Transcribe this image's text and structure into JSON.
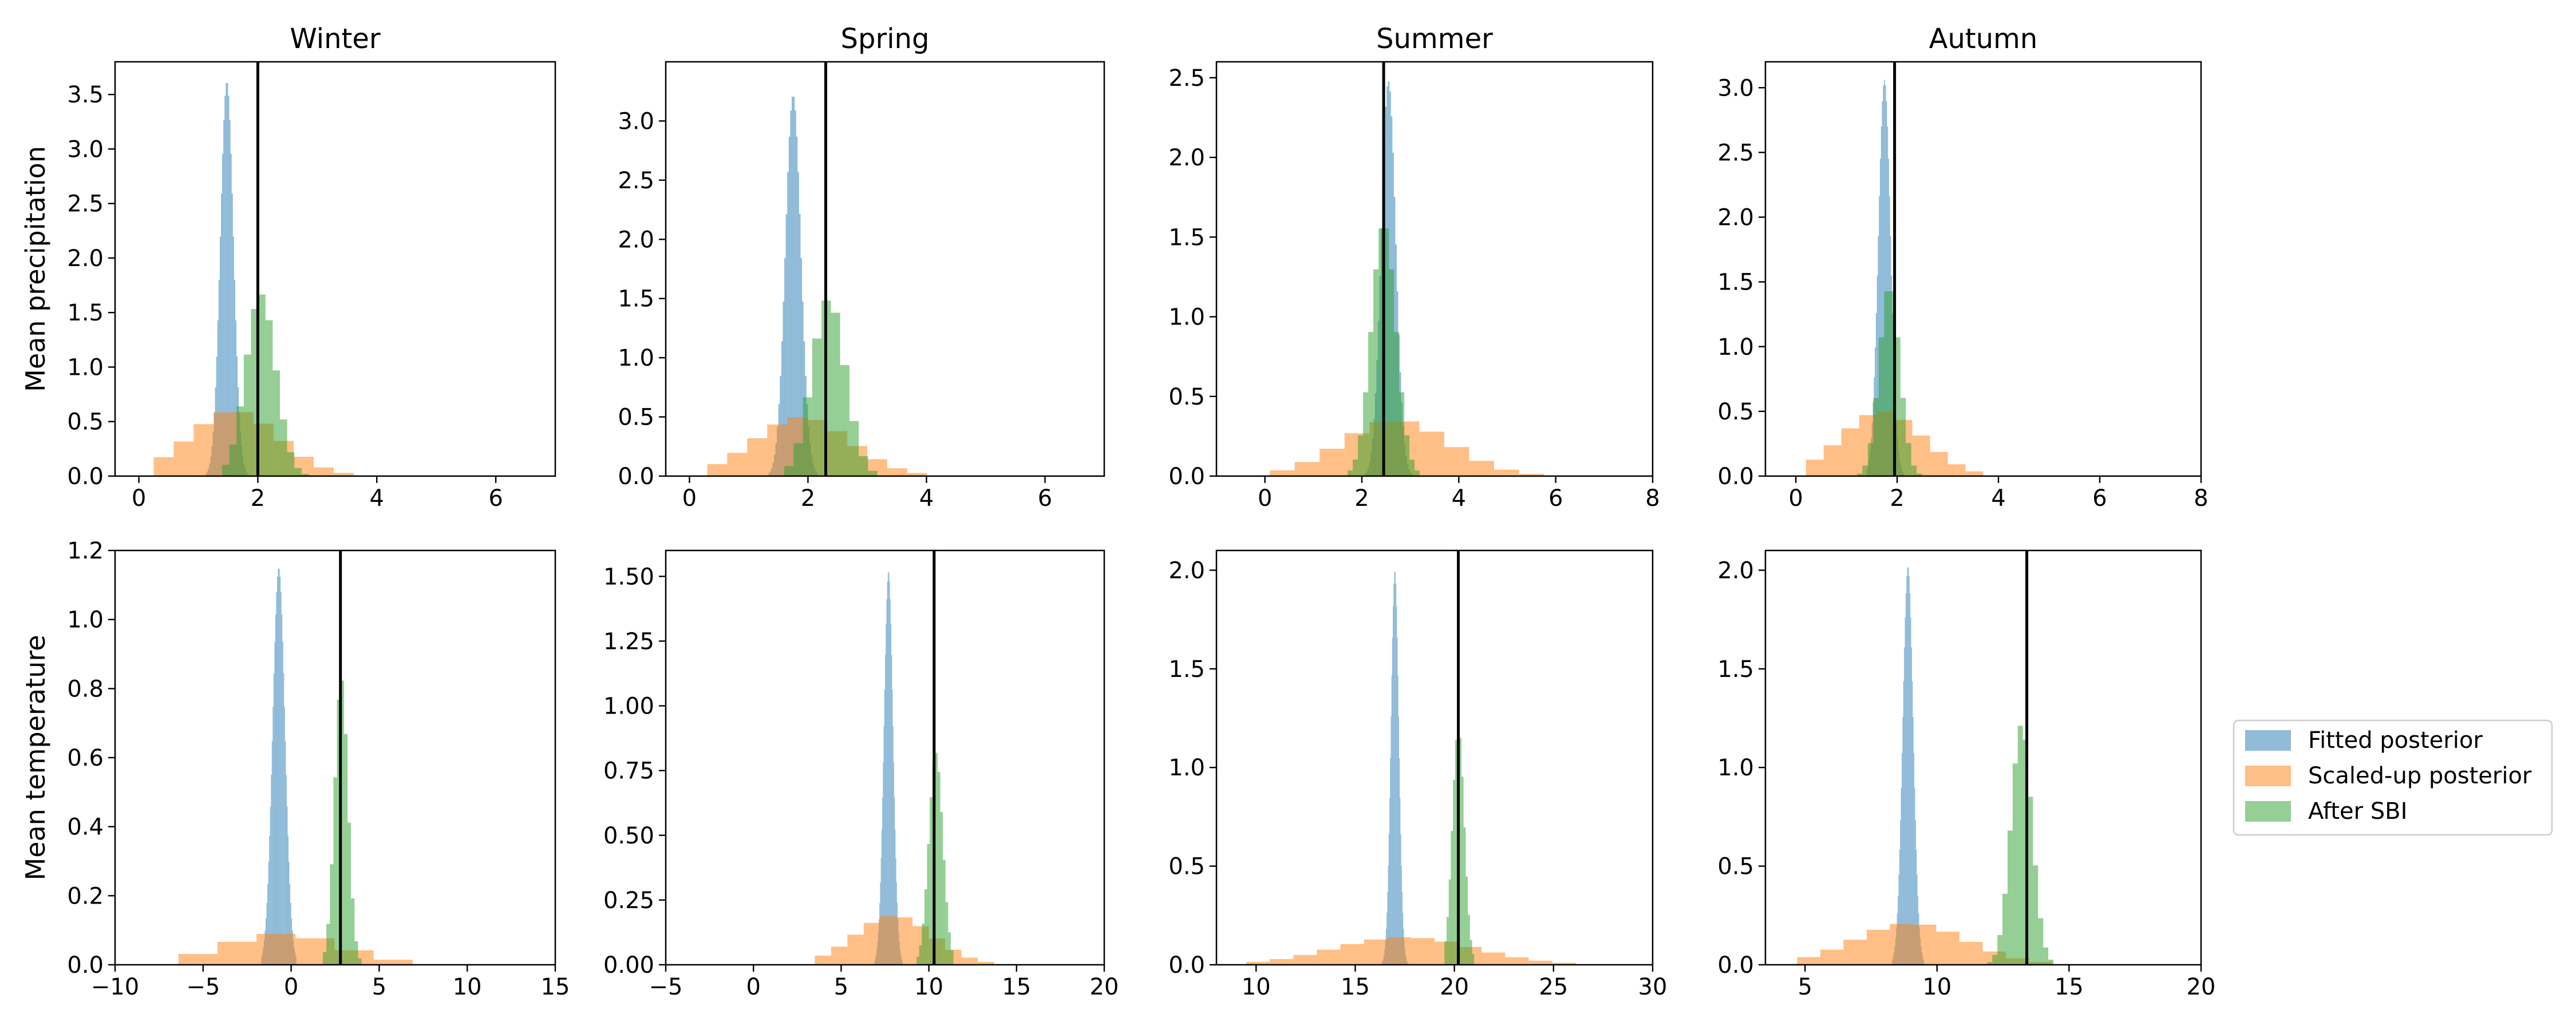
{
  "legend": {
    "placement": "right",
    "items": [
      {
        "label": "Fitted posterior",
        "color": "#1f77b4"
      },
      {
        "label": "Scaled-up posterior",
        "color": "#ff7f0e"
      },
      {
        "label": "After SBI",
        "color": "#2ca02c"
      }
    ]
  },
  "chart_data": [
    {
      "type": "histogram",
      "row": 0,
      "col": 0,
      "title": "Winter",
      "ylabel": "Mean precipitation",
      "xlim": [
        -0.4,
        7.0
      ],
      "ylim": [
        0,
        3.8
      ],
      "xticks": [
        0,
        2,
        4,
        6
      ],
      "yticks": [
        0.0,
        0.5,
        1.0,
        1.5,
        2.0,
        2.5,
        3.0,
        3.5
      ],
      "ytick_labels": [
        "0.0",
        "0.5",
        "1.0",
        "1.5",
        "2.0",
        "2.5",
        "3.0",
        "3.5"
      ],
      "true_value": 2.0,
      "series": [
        {
          "name": "Fitted posterior",
          "peak": 3.62,
          "support": [
            1.1,
            1.9
          ],
          "mean": 1.48,
          "sd": 0.11,
          "bins": 40
        },
        {
          "name": "Scaled-up posterior",
          "peak": 0.6,
          "support": [
            0.25,
            6.3
          ],
          "mean": 1.6,
          "sd": 0.75,
          "bins": 18
        },
        {
          "name": "After SBI",
          "peak": 1.67,
          "support": [
            1.4,
            3.1
          ],
          "mean": 2.05,
          "sd": 0.25,
          "bins": 14
        }
      ]
    },
    {
      "type": "histogram",
      "row": 0,
      "col": 1,
      "title": "Spring",
      "ylabel": "",
      "xlim": [
        -0.4,
        7.0
      ],
      "ylim": [
        0,
        3.5
      ],
      "xticks": [
        0,
        2,
        4,
        6
      ],
      "yticks": [
        0.0,
        0.5,
        1.0,
        1.5,
        2.0,
        2.5,
        3.0
      ],
      "ytick_labels": [
        "0.0",
        "0.5",
        "1.0",
        "1.5",
        "2.0",
        "2.5",
        "3.0"
      ],
      "true_value": 2.3,
      "series": [
        {
          "name": "Fitted posterior",
          "peak": 3.22,
          "support": [
            1.3,
            2.3
          ],
          "mean": 1.75,
          "sd": 0.13,
          "bins": 40
        },
        {
          "name": "Scaled-up posterior",
          "peak": 0.5,
          "support": [
            0.3,
            5.7
          ],
          "mean": 1.9,
          "sd": 0.8,
          "bins": 16
        },
        {
          "name": "After SBI",
          "peak": 1.5,
          "support": [
            1.6,
            3.8
          ],
          "mean": 2.35,
          "sd": 0.28,
          "bins": 14
        }
      ]
    },
    {
      "type": "histogram",
      "row": 0,
      "col": 2,
      "title": "Summer",
      "ylabel": "",
      "xlim": [
        -1.0,
        8.0
      ],
      "ylim": [
        0,
        2.6
      ],
      "xticks": [
        0,
        2,
        4,
        6,
        8
      ],
      "yticks": [
        0.0,
        0.5,
        1.0,
        1.5,
        2.0,
        2.5
      ],
      "ytick_labels": [
        "0.0",
        "0.5",
        "1.0",
        "1.5",
        "2.0",
        "2.5"
      ],
      "true_value": 2.45,
      "series": [
        {
          "name": "Fitted posterior",
          "peak": 2.48,
          "support": [
            2.0,
            3.2
          ],
          "mean": 2.55,
          "sd": 0.15,
          "bins": 40
        },
        {
          "name": "Scaled-up posterior",
          "peak": 0.35,
          "support": [
            0.1,
            7.3
          ],
          "mean": 2.7,
          "sd": 1.1,
          "bins": 14
        },
        {
          "name": "After SBI",
          "peak": 1.59,
          "support": [
            1.6,
            3.3
          ],
          "mean": 2.45,
          "sd": 0.25,
          "bins": 16
        }
      ]
    },
    {
      "type": "histogram",
      "row": 0,
      "col": 3,
      "title": "Autumn",
      "ylabel": "",
      "xlim": [
        -0.6,
        8.0
      ],
      "ylim": [
        0,
        3.2
      ],
      "xticks": [
        0,
        2,
        4,
        6,
        8
      ],
      "yticks": [
        0.0,
        0.5,
        1.0,
        1.5,
        2.0,
        2.5,
        3.0
      ],
      "ytick_labels": [
        "0.0",
        "0.5",
        "1.0",
        "1.5",
        "2.0",
        "2.5",
        "3.0"
      ],
      "true_value": 1.95,
      "series": [
        {
          "name": "Fitted posterior",
          "peak": 3.06,
          "support": [
            1.4,
            2.2
          ],
          "mean": 1.75,
          "sd": 0.12,
          "bins": 40
        },
        {
          "name": "Scaled-up posterior",
          "peak": 0.5,
          "support": [
            0.2,
            6.5
          ],
          "mean": 1.7,
          "sd": 0.8,
          "bins": 18
        },
        {
          "name": "After SBI",
          "peak": 1.48,
          "support": [
            1.1,
            2.6
          ],
          "mean": 1.85,
          "sd": 0.2,
          "bins": 14
        }
      ]
    },
    {
      "type": "histogram",
      "row": 1,
      "col": 0,
      "title": "",
      "ylabel": "Mean temperature",
      "xlim": [
        -10,
        15
      ],
      "ylim": [
        0,
        1.2
      ],
      "xticks": [
        -10,
        -5,
        0,
        5,
        10,
        15
      ],
      "xtick_labels": [
        "−10",
        "−5",
        "0",
        "5",
        "10",
        "15"
      ],
      "yticks": [
        0.0,
        0.2,
        0.4,
        0.6,
        0.8,
        1.0,
        1.2
      ],
      "ytick_labels": [
        "0.0",
        "0.2",
        "0.4",
        "0.6",
        "0.8",
        "1.0",
        "1.2"
      ],
      "true_value": 2.8,
      "series": [
        {
          "name": "Fitted posterior",
          "peak": 1.15,
          "support": [
            -1.7,
            0.3
          ],
          "mean": -0.7,
          "sd": 0.35,
          "bins": 40
        },
        {
          "name": "Scaled-up posterior",
          "peak": 0.09,
          "support": [
            -6.4,
            6.9
          ],
          "mean": -0.5,
          "sd": 3.3,
          "bins": 6
        },
        {
          "name": "After SBI",
          "peak": 0.83,
          "support": [
            1.8,
            4.2
          ],
          "mean": 2.85,
          "sd": 0.38,
          "bins": 12
        }
      ]
    },
    {
      "type": "histogram",
      "row": 1,
      "col": 1,
      "title": "",
      "ylabel": "",
      "xlim": [
        -5,
        20
      ],
      "ylim": [
        0,
        1.6
      ],
      "xticks": [
        -5,
        0,
        5,
        10,
        15,
        20
      ],
      "xtick_labels": [
        "−5",
        "0",
        "5",
        "10",
        "15",
        "20"
      ],
      "yticks": [
        0.0,
        0.25,
        0.5,
        0.75,
        1.0,
        1.25,
        1.5
      ],
      "ytick_labels": [
        "0.00",
        "0.25",
        "0.50",
        "0.75",
        "1.00",
        "1.25",
        "1.50"
      ],
      "true_value": 10.3,
      "series": [
        {
          "name": "Fitted posterior",
          "peak": 1.52,
          "support": [
            6.9,
            8.5
          ],
          "mean": 7.7,
          "sd": 0.26,
          "bins": 40
        },
        {
          "name": "Scaled-up posterior",
          "peak": 0.19,
          "support": [
            3.5,
            16.5
          ],
          "mean": 8.0,
          "sd": 2.2,
          "bins": 14
        },
        {
          "name": "After SBI",
          "peak": 0.82,
          "support": [
            9.3,
            11.4
          ],
          "mean": 10.4,
          "sd": 0.4,
          "bins": 14
        }
      ]
    },
    {
      "type": "histogram",
      "row": 1,
      "col": 2,
      "title": "",
      "ylabel": "",
      "xlim": [
        8,
        30
      ],
      "ylim": [
        0,
        2.1
      ],
      "xticks": [
        10,
        15,
        20,
        25,
        30
      ],
      "yticks": [
        0.0,
        0.5,
        1.0,
        1.5,
        2.0
      ],
      "ytick_labels": [
        "0.0",
        "0.5",
        "1.0",
        "1.5",
        "2.0"
      ],
      "true_value": 20.2,
      "series": [
        {
          "name": "Fitted posterior",
          "peak": 2.0,
          "support": [
            16.3,
            17.7
          ],
          "mean": 17.0,
          "sd": 0.2,
          "bins": 40
        },
        {
          "name": "Scaled-up posterior",
          "peak": 0.14,
          "support": [
            9.5,
            28.5
          ],
          "mean": 17.5,
          "sd": 3.5,
          "bins": 16
        },
        {
          "name": "After SBI",
          "peak": 1.22,
          "support": [
            19.5,
            21.0
          ],
          "mean": 20.2,
          "sd": 0.3,
          "bins": 14
        }
      ]
    },
    {
      "type": "histogram",
      "row": 1,
      "col": 3,
      "title": "",
      "ylabel": "",
      "xlim": [
        3.5,
        20
      ],
      "ylim": [
        0,
        2.1
      ],
      "xticks": [
        5,
        10,
        15,
        20
      ],
      "yticks": [
        0.0,
        0.5,
        1.0,
        1.5,
        2.0
      ],
      "ytick_labels": [
        "0.0",
        "0.5",
        "1.0",
        "1.5",
        "2.0"
      ],
      "true_value": 13.4,
      "series": [
        {
          "name": "Fitted posterior",
          "peak": 2.02,
          "support": [
            8.3,
            9.5
          ],
          "mean": 8.9,
          "sd": 0.2,
          "bins": 40
        },
        {
          "name": "Scaled-up posterior",
          "peak": 0.21,
          "support": [
            4.7,
            17.0
          ],
          "mean": 9.0,
          "sd": 2.1,
          "bins": 14
        },
        {
          "name": "After SBI",
          "peak": 1.22,
          "support": [
            11.9,
            14.6
          ],
          "mean": 13.2,
          "sd": 0.4,
          "bins": 14
        }
      ]
    }
  ]
}
